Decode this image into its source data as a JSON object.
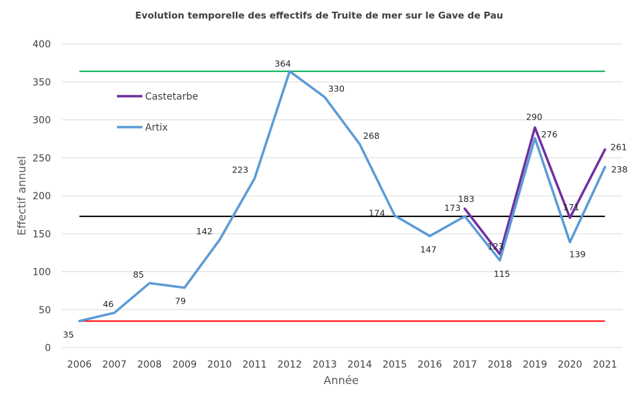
{
  "chart_data": {
    "type": "line",
    "title": "Evolution temporelle des effectifs de Truite de mer sur le Gave de Pau",
    "xlabel": "Année",
    "ylabel": "Effectif annuel",
    "ylim": [
      0,
      400
    ],
    "yticks": [
      0,
      50,
      100,
      150,
      200,
      250,
      300,
      350,
      400
    ],
    "grid": true,
    "legend": "top-left",
    "categories": [
      "2006",
      "2007",
      "2008",
      "2009",
      "2010",
      "2011",
      "2012",
      "2013",
      "2014",
      "2015",
      "2016",
      "2017",
      "2018",
      "2019",
      "2020",
      "2021"
    ],
    "series": [
      {
        "name": "Castetarbe",
        "color": "#7030a0",
        "values": [
          null,
          null,
          null,
          null,
          null,
          null,
          null,
          null,
          null,
          null,
          null,
          183,
          123,
          290,
          171,
          261
        ],
        "labels": [
          null,
          null,
          null,
          null,
          null,
          null,
          null,
          null,
          null,
          null,
          null,
          "183",
          "123",
          "290",
          "171",
          "261"
        ]
      },
      {
        "name": "Artix",
        "color": "#5b9bd5",
        "values": [
          35,
          46,
          85,
          79,
          142,
          223,
          364,
          330,
          268,
          174,
          147,
          173,
          115,
          276,
          139,
          238
        ],
        "labels": [
          "35",
          "46",
          "85",
          "79",
          "142",
          "223",
          "364",
          "330",
          "268",
          "174",
          "147",
          "173",
          "115",
          "276",
          "139",
          "238"
        ]
      }
    ],
    "reference_lines": [
      {
        "value": 364,
        "color": "#00b050"
      },
      {
        "value": 173,
        "color": "#000000"
      },
      {
        "value": 35,
        "color": "#ff0000"
      }
    ]
  }
}
